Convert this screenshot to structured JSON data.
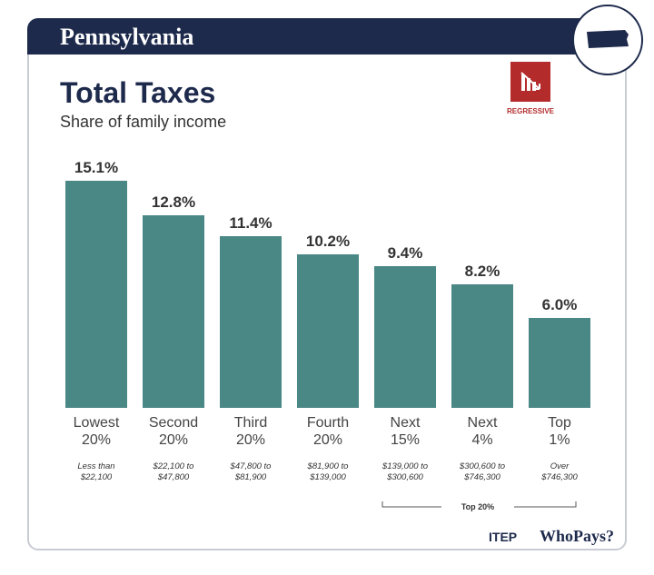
{
  "chart_data": {
    "type": "bar",
    "header": "Pennsylvania",
    "title": "Total Taxes",
    "subtitle": "Share of family income",
    "badge": "REGRESSIVE",
    "categories": [
      "Lowest 20%",
      "Second 20%",
      "Third 20%",
      "Fourth 20%",
      "Next 15%",
      "Next 4%",
      "Top 1%"
    ],
    "income_ranges": [
      "Less than $22,100",
      "$22,100 to $47,800",
      "$47,800 to $81,900",
      "$81,900 to $139,000",
      "$139,000 to $300,600",
      "$300,600 to $746,300",
      "Over $746,300"
    ],
    "values": [
      15.1,
      12.8,
      11.4,
      10.2,
      9.4,
      8.2,
      6.0
    ],
    "value_labels": [
      "15.1%",
      "12.8%",
      "11.4%",
      "10.2%",
      "9.4%",
      "8.2%",
      "6.0%"
    ],
    "color": "#4a8886",
    "bracket_label": "Top 20%",
    "source": "ITEP",
    "source_brand": "WhoPays?"
  }
}
